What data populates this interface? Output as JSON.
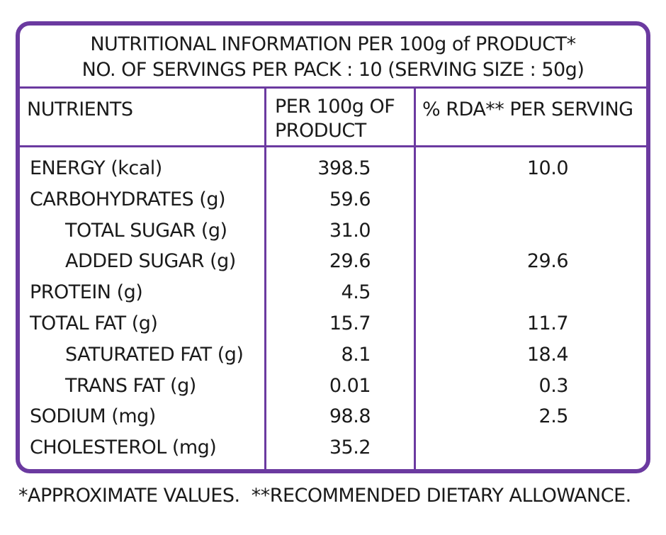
{
  "header": {
    "title": "NUTRITIONAL INFORMATION PER 100g of PRODUCT*",
    "subtitle": "NO. OF SERVINGS PER PACK : 10 (SERVING SIZE : 50g)"
  },
  "table": {
    "columns": [
      "NUTRIENTS",
      "PER 100g OF PRODUCT",
      "% RDA** PER SERVING"
    ],
    "rows": [
      [
        "ENERGY (kcal)",
        "398.5",
        "10.0"
      ],
      [
        "CARBOHYDRATES (g)",
        "59.6",
        null
      ],
      [
        "TOTAL SUGAR (g)",
        "31.0",
        null
      ],
      [
        "ADDED SUGAR (g)",
        "29.6",
        "29.6"
      ],
      [
        "PROTEIN (g)",
        "4.5",
        null
      ],
      [
        "TOTAL FAT (g)",
        "15.7",
        "11.7"
      ],
      [
        "SATURATED FAT (g)",
        "8.1",
        "18.4"
      ],
      [
        "TRANS FAT (g)",
        "0.01",
        "0.3"
      ],
      [
        "SODIUM (mg)",
        "98.8",
        "2.5"
      ],
      [
        "CHOLESTEROL (mg)",
        "35.2",
        null
      ]
    ]
  },
  "footnote": "*APPROXIMATE VALUES.  **RECOMMENDED DIETARY ALLOWANCE."
}
